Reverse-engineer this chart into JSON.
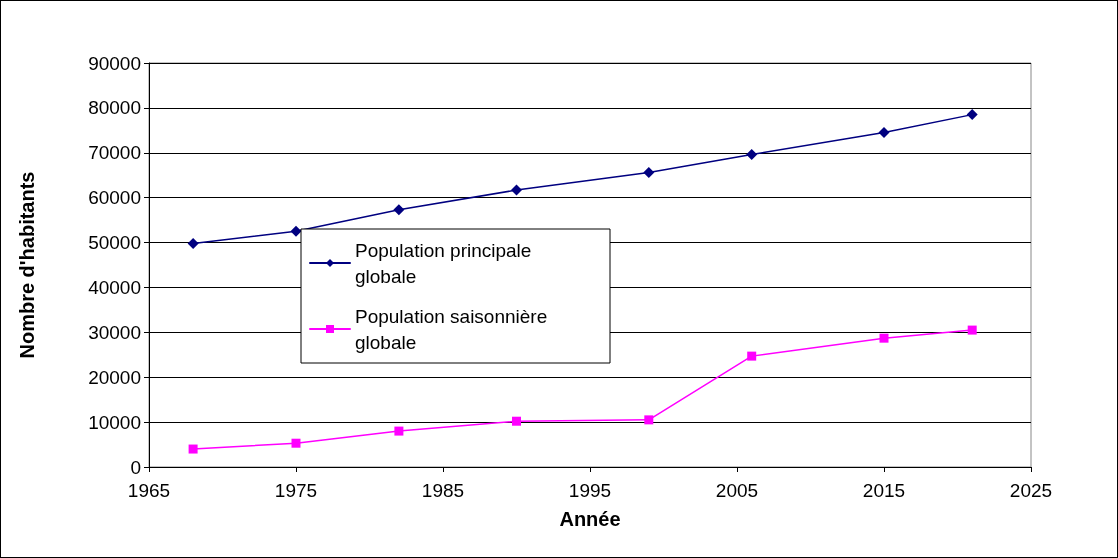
{
  "chart_data": {
    "type": "line",
    "xlabel": "Année",
    "ylabel": "Nombre d'habitants",
    "x": [
      1968,
      1975,
      1982,
      1990,
      1999,
      2006,
      2015,
      2021
    ],
    "series": [
      {
        "name": "Population principale globale",
        "color": "#000080",
        "marker": "diamond",
        "values": [
          49800,
          52500,
          57300,
          61700,
          65600,
          69600,
          74500,
          78500
        ]
      },
      {
        "name": "Population saisonnière globale",
        "color": "#ff00ff",
        "marker": "square",
        "values": [
          4000,
          5300,
          8000,
          10200,
          10500,
          24700,
          28700,
          30500
        ]
      }
    ],
    "xlim": [
      1965,
      2025
    ],
    "xticks": [
      1965,
      1975,
      1985,
      1995,
      2005,
      2015,
      2025
    ],
    "ylim": [
      0,
      90000
    ],
    "yticks": [
      0,
      10000,
      20000,
      30000,
      40000,
      50000,
      60000,
      70000,
      80000,
      90000
    ],
    "grid": "y",
    "legend": "left",
    "line_style": "solid"
  }
}
